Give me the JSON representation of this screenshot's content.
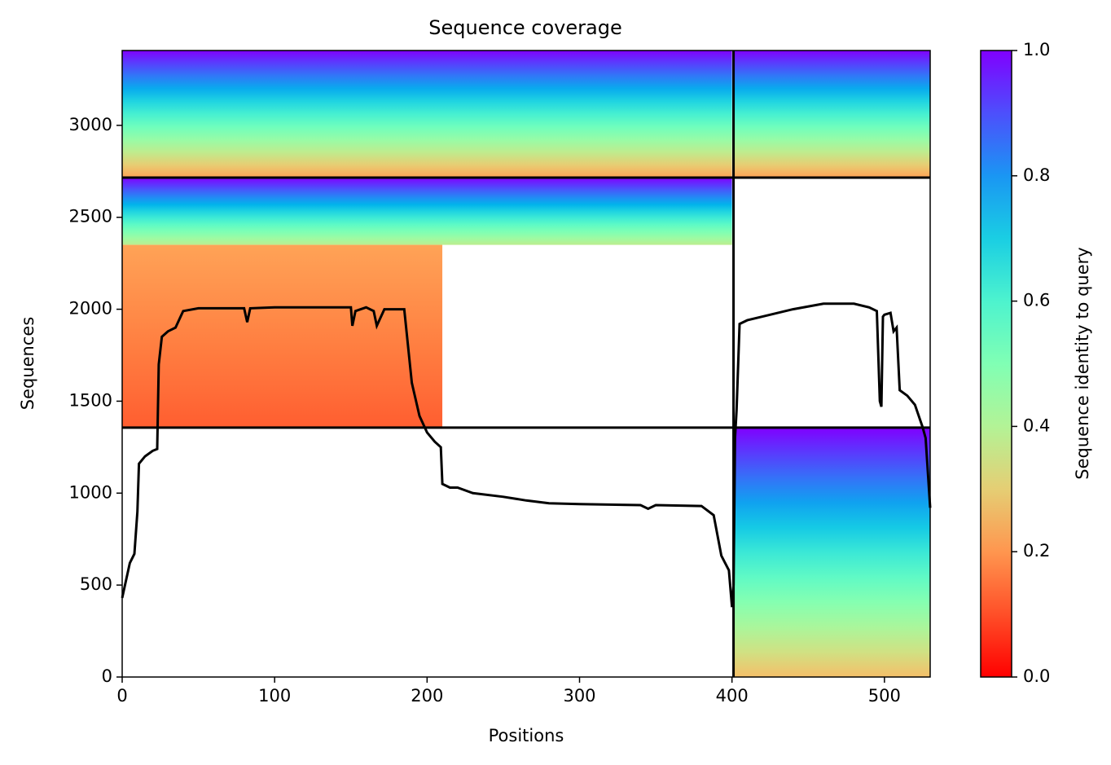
{
  "chart_data": {
    "type": "coverage",
    "title": "Sequence coverage",
    "xlabel": "Positions",
    "ylabel": "Sequences",
    "xlim": [
      0,
      530
    ],
    "ylim": [
      0,
      3407
    ],
    "xticks": [
      0,
      100,
      200,
      300,
      400,
      500
    ],
    "yticks": [
      0,
      500,
      1000,
      1500,
      2000,
      2500,
      3000
    ],
    "colormap": "rainbow_r",
    "blocks": [
      {
        "x": [
          0,
          400
        ],
        "y": [
          2716,
          3407
        ],
        "identity": [
          0.22,
          1.0
        ]
      },
      {
        "x": [
          401,
          530
        ],
        "y": [
          2716,
          3407
        ],
        "identity": [
          0.22,
          1.0
        ]
      },
      {
        "x": [
          0,
          400
        ],
        "y": [
          2350,
          2716
        ],
        "identity": [
          0.38,
          1.0
        ]
      },
      {
        "x": [
          0,
          210
        ],
        "y": [
          1356,
          2350
        ],
        "identity": [
          0.12,
          0.22
        ]
      },
      {
        "x": [
          401,
          530
        ],
        "y": [
          0,
          1356
        ],
        "identity": [
          0.27,
          1.0
        ]
      }
    ],
    "dividers": {
      "x": [
        401
      ],
      "y": [
        1356,
        2716
      ]
    },
    "series": [
      {
        "name": "coverage",
        "color": "#000000",
        "x": [
          0,
          5,
          8,
          10,
          11,
          15,
          20,
          23,
          24,
          26,
          30,
          35,
          40,
          50,
          80,
          82,
          84,
          100,
          150,
          151,
          153,
          160,
          165,
          167,
          172,
          185,
          190,
          195,
          200,
          205,
          209,
          210,
          215,
          220,
          230,
          250,
          265,
          280,
          300,
          340,
          345,
          350,
          380,
          388,
          393,
          398,
          400,
          401,
          402,
          403,
          405,
          410,
          420,
          440,
          460,
          480,
          490,
          495,
          497,
          498,
          499,
          500,
          504,
          506,
          508,
          510,
          515,
          520,
          525,
          527,
          530
        ],
        "values": [
          430,
          620,
          670,
          900,
          1160,
          1200,
          1230,
          1240,
          1700,
          1850,
          1880,
          1900,
          1990,
          2005,
          2005,
          1930,
          2005,
          2010,
          2010,
          1910,
          1990,
          2010,
          1990,
          1910,
          2000,
          2000,
          1600,
          1420,
          1330,
          1280,
          1250,
          1050,
          1030,
          1030,
          1000,
          980,
          960,
          945,
          940,
          935,
          915,
          935,
          930,
          880,
          660,
          580,
          380,
          500,
          1300,
          1450,
          1920,
          1940,
          1960,
          2000,
          2030,
          2030,
          2010,
          1990,
          1500,
          1470,
          1960,
          1970,
          1980,
          1880,
          1900,
          1560,
          1530,
          1480,
          1360,
          1300,
          920
        ]
      }
    ],
    "colorbar": {
      "label": "Sequence identity to query",
      "lim": [
        0,
        1
      ],
      "ticks": [
        {
          "value": 0,
          "label": "0.0"
        },
        {
          "value": 0.2,
          "label": "0.2"
        },
        {
          "value": 0.4,
          "label": "0.4"
        },
        {
          "value": 0.6,
          "label": "0.6"
        },
        {
          "value": 0.8,
          "label": "0.8"
        },
        {
          "value": 1,
          "label": "1.0"
        }
      ]
    }
  }
}
